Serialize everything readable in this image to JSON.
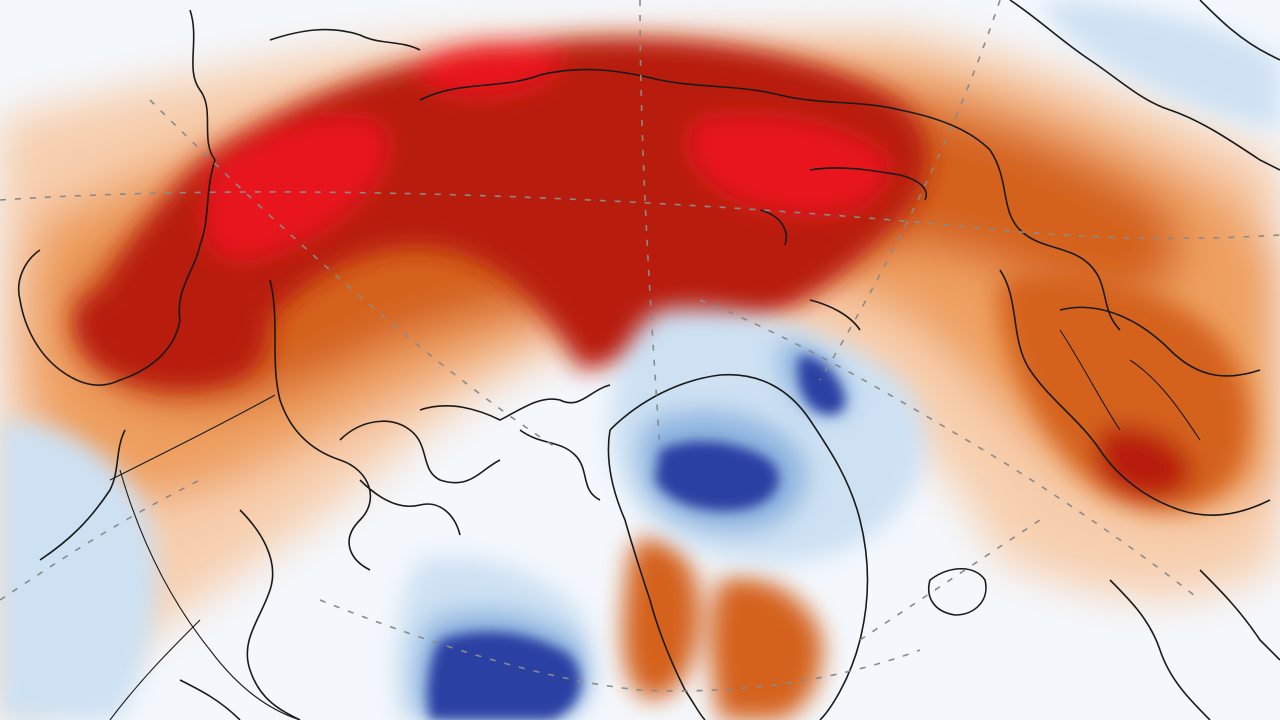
{
  "map": {
    "projection": "polar-stereographic-north",
    "variable": "temperature-anomaly",
    "colors": {
      "globe_background": "#f4f8fd",
      "outside_globe": "#ffffff",
      "extreme_warm": "#e8141a",
      "very_warm": "#b81a0a",
      "warm": "#d4621a",
      "mild_warm": "#eea060",
      "slight_warm": "#f7cfae",
      "neutral": "#f6f4f2",
      "slight_cold": "#cde1f3",
      "cold": "#8fb6e0",
      "very_cold": "#2b3fa3",
      "coastline": "#1a1a1a",
      "graticule": "#8a8a8a"
    },
    "layers": [
      "anomaly-shading",
      "coastlines",
      "country-borders",
      "graticule"
    ]
  }
}
